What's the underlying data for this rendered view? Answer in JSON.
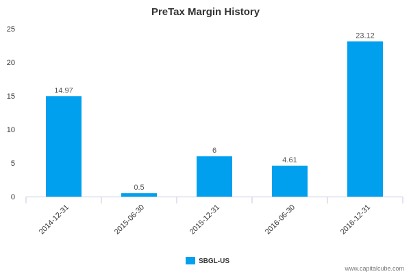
{
  "chart_data": {
    "type": "bar",
    "title": "PreTax Margin History",
    "categories": [
      "2014-12-31",
      "2015-06-30",
      "2015-12-31",
      "2016-06-30",
      "2016-12-31"
    ],
    "series": [
      {
        "name": "SBGL-US",
        "values": [
          14.97,
          0.5,
          6,
          4.61,
          23.12
        ]
      }
    ],
    "data_labels": [
      "14.97",
      "0.5",
      "6",
      "4.61",
      "23.12"
    ],
    "ylim": [
      0,
      25
    ],
    "yticks": [
      0,
      5,
      10,
      15,
      20,
      25
    ],
    "xlabel": "",
    "ylabel": "",
    "grid": false,
    "legend_position": "bottom-center"
  },
  "colors": {
    "bar": "#00a0ef",
    "axis": "#c0cadc",
    "text": "#333333"
  },
  "watermark": "www.capitalcube.com"
}
